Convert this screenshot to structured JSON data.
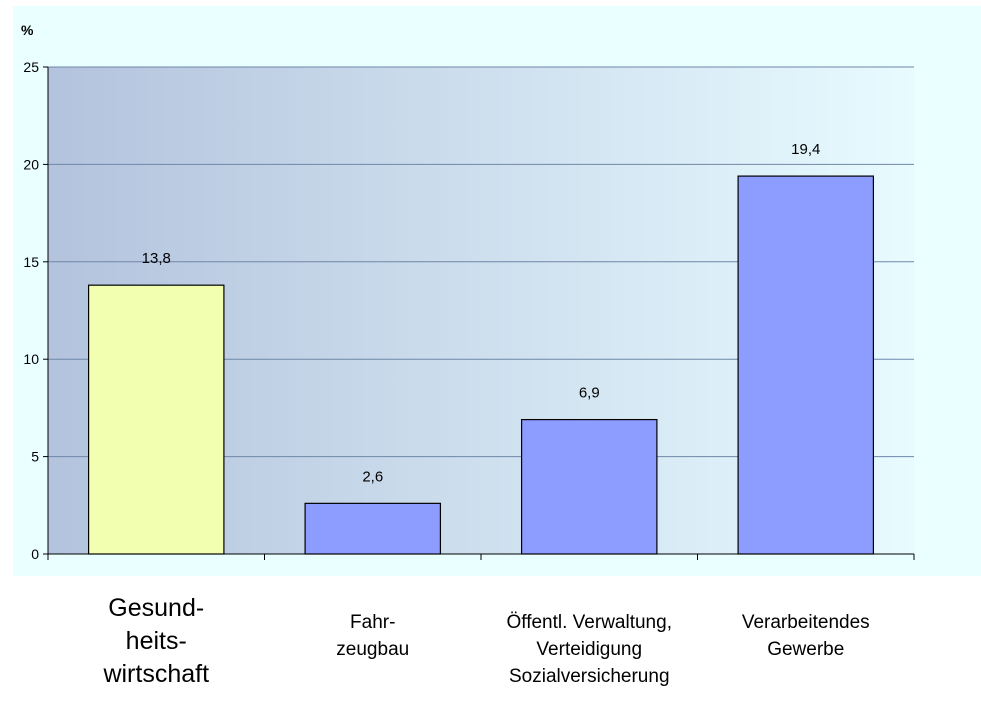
{
  "chart_data": {
    "type": "bar",
    "ylabel": "%",
    "ylim": [
      0,
      25
    ],
    "yticks": [
      "0",
      "5",
      "10",
      "15",
      "20",
      "25"
    ],
    "grid": true,
    "categories": [
      "Gesund-\nheits-\nwirtschaft",
      "Fahr-\nzeugbau",
      "Öffentl. Verwaltung,\nVerteidigung\nSozialversicherung",
      "Verarbeitendes\nGewerbe"
    ],
    "values": [
      13.8,
      2.6,
      6.9,
      19.4
    ],
    "value_labels": [
      "13,8",
      "2,6",
      "6,9",
      "19,4"
    ],
    "colors": {
      "highlight_bar": "#f3ffb0",
      "bar": "#8c9cff",
      "plot_gradient_start": "#b3c3dd",
      "plot_gradient_end": "#e8fbff",
      "chart_background": "#eaffff"
    }
  }
}
